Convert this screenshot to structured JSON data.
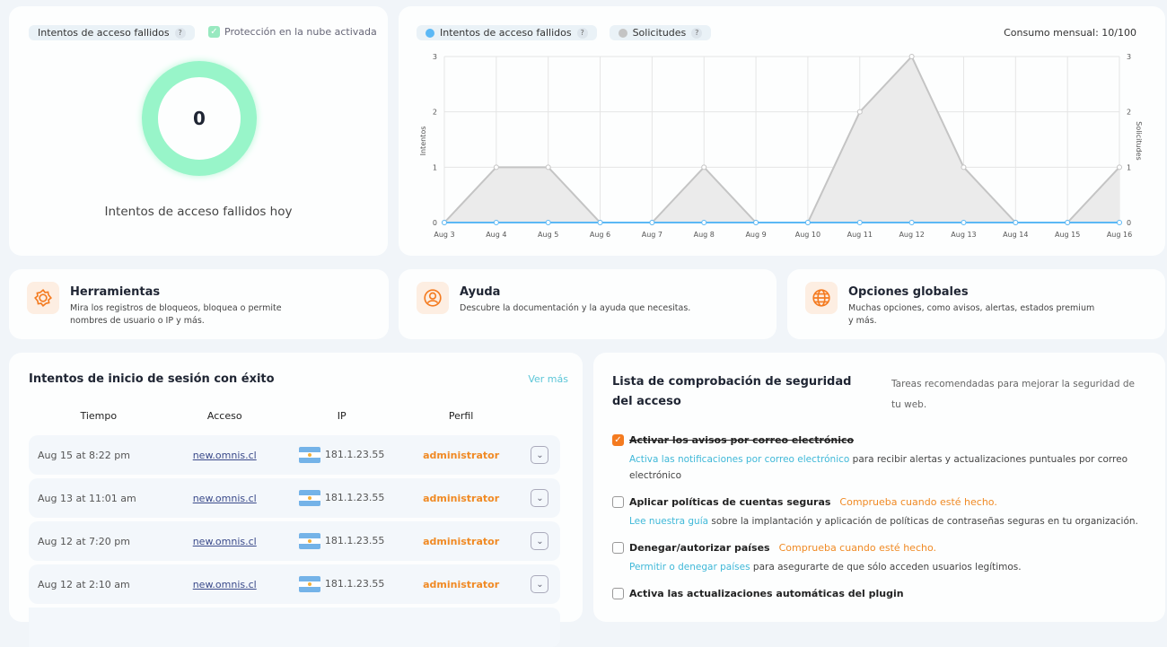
{
  "donut": {
    "pill": "Intentos de acceso fallidos",
    "help": "?",
    "cloud": "Protección en la nube activada",
    "value": "0",
    "caption": "Intentos de acceso fallidos hoy",
    "color": "#98f5c9"
  },
  "chart_header": {
    "legend1": "Intentos de acceso fallidos",
    "legend2": "Solicitudes",
    "help": "?",
    "consumption": "Consumo mensual: 10/100"
  },
  "chart_data": {
    "type": "line",
    "categories": [
      "Aug 3",
      "Aug 4",
      "Aug 5",
      "Aug 6",
      "Aug 7",
      "Aug 8",
      "Aug 9",
      "Aug 10",
      "Aug 11",
      "Aug 12",
      "Aug 13",
      "Aug 14",
      "Aug 15",
      "Aug 16"
    ],
    "series": [
      {
        "name": "Intentos de acceso fallidos",
        "color": "#5bb8f5",
        "values": [
          0,
          0,
          0,
          0,
          0,
          0,
          0,
          0,
          0,
          0,
          0,
          0,
          0,
          0
        ]
      },
      {
        "name": "Solicitudes",
        "color": "#c4c4c4",
        "fill": true,
        "values": [
          0,
          1,
          1,
          0,
          0,
          1,
          0,
          0,
          2,
          3,
          1,
          0,
          0,
          1
        ]
      }
    ],
    "ylabel": "Intentos",
    "y2label": "Solicitudes",
    "ylim": [
      0,
      3
    ],
    "yticks": [
      "0",
      "1",
      "2",
      "3"
    ],
    "grid": true
  },
  "tools": [
    {
      "title": "Herramientas",
      "desc": "Mira los registros de bloqueos, bloquea o permite nombres de usuario o IP y más.",
      "icon": "gear-icon"
    },
    {
      "title": "Ayuda",
      "desc": "Descubre la documentación y la ayuda que necesitas.",
      "icon": "user-help-icon"
    },
    {
      "title": "Opciones globales",
      "desc": "Muchas opciones, como avisos, alertas, estados premium y más.",
      "icon": "globe-icon"
    }
  ],
  "logins": {
    "title": "Intentos de inicio de sesión con éxito",
    "more": "Ver más",
    "columns": [
      "Tiempo",
      "Acceso",
      "IP",
      "Perfil"
    ],
    "rows": [
      {
        "time": "Aug 15 at 8:22 pm",
        "access": "new.omnis.cl",
        "ip": "181.1.23.55",
        "role": "administrator"
      },
      {
        "time": "Aug 13 at 11:01 am",
        "access": "new.omnis.cl",
        "ip": "181.1.23.55",
        "role": "administrator"
      },
      {
        "time": "Aug 12 at 7:20 pm",
        "access": "new.omnis.cl",
        "ip": "181.1.23.55",
        "role": "administrator"
      },
      {
        "time": "Aug 12 at 2:10 am",
        "access": "new.omnis.cl",
        "ip": "181.1.23.55",
        "role": "administrator"
      }
    ]
  },
  "checklist": {
    "title": "Lista de comprobación de seguridad del acceso",
    "subtitle": "Tareas recomendadas para mejorar la seguridad de tu web.",
    "items": [
      {
        "label": "Activar los avisos por correo electrónico",
        "checked": true,
        "warn": "",
        "link": "Activa las notificaciones por correo electrónico",
        "desc": " para recibir alertas y actualizaciones puntuales por correo electrónico"
      },
      {
        "label": "Aplicar políticas de cuentas seguras",
        "checked": false,
        "warn": "Comprueba cuando esté hecho.",
        "link": "Lee nuestra guía",
        "desc": " sobre la implantación y aplicación de políticas de contraseñas seguras en tu organización."
      },
      {
        "label": "Denegar/autorizar países",
        "checked": false,
        "warn": "Comprueba cuando esté hecho.",
        "link": "Permitir o denegar países",
        "desc": " para asegurarte de que sólo acceden usuarios legítimos."
      },
      {
        "label": "Activa las actualizaciones automáticas del plugin",
        "checked": false,
        "warn": "",
        "link": "",
        "desc": ""
      }
    ]
  }
}
